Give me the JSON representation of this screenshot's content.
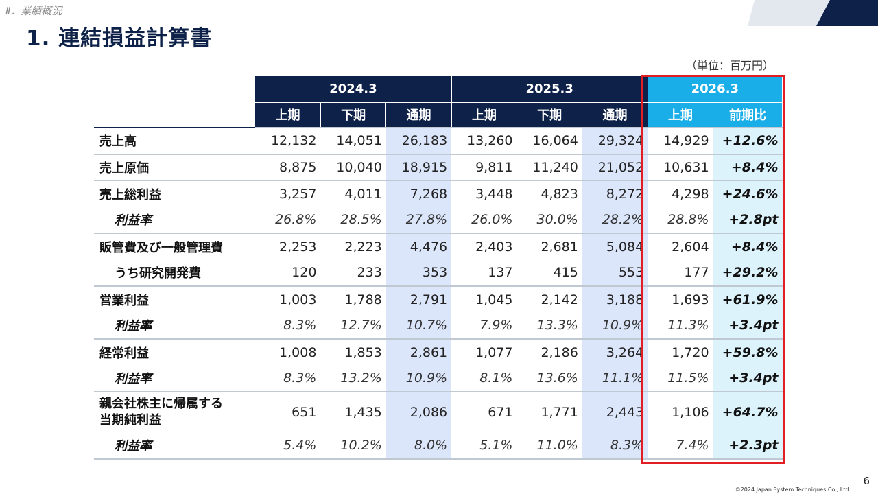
{
  "header": {
    "section": "Ⅱ．業績概況",
    "title": "1. 連結損益計算書",
    "unit": "（単位：百万円）"
  },
  "table": {
    "years": [
      "2024.3",
      "2025.3",
      "2026.3"
    ],
    "halves": [
      "上期",
      "下期",
      "通期",
      "上期",
      "下期",
      "通期",
      "上期",
      "前期比"
    ],
    "rows": [
      {
        "label": "売上高",
        "values": [
          "12,132",
          "14,051",
          "26,183",
          "13,260",
          "16,064",
          "29,324",
          "14,929",
          "+12.6%"
        ]
      },
      {
        "label": "売上原価",
        "values": [
          "8,875",
          "10,040",
          "18,915",
          "9,811",
          "11,240",
          "21,052",
          "10,631",
          "+8.4%"
        ]
      },
      {
        "label": "売上総利益",
        "values": [
          "3,257",
          "4,011",
          "7,268",
          "3,448",
          "4,823",
          "8,272",
          "4,298",
          "+24.6%"
        ]
      },
      {
        "label": "利益率",
        "values": [
          "26.8%",
          "28.5%",
          "27.8%",
          "26.0%",
          "30.0%",
          "28.2%",
          "28.8%",
          "+2.8pt"
        ]
      },
      {
        "label": "販管費及び一般管理費",
        "values": [
          "2,253",
          "2,223",
          "4,476",
          "2,403",
          "2,681",
          "5,084",
          "2,604",
          "+8.4%"
        ]
      },
      {
        "label": "うち研究開発費",
        "values": [
          "120",
          "233",
          "353",
          "137",
          "415",
          "553",
          "177",
          "+29.2%"
        ]
      },
      {
        "label": "営業利益",
        "values": [
          "1,003",
          "1,788",
          "2,791",
          "1,045",
          "2,142",
          "3,188",
          "1,693",
          "+61.9%"
        ]
      },
      {
        "label": "利益率",
        "values": [
          "8.3%",
          "12.7%",
          "10.7%",
          "7.9%",
          "13.3%",
          "10.9%",
          "11.3%",
          "+3.4pt"
        ]
      },
      {
        "label": "経常利益",
        "values": [
          "1,008",
          "1,853",
          "2,861",
          "1,077",
          "2,186",
          "3,264",
          "1,720",
          "+59.8%"
        ]
      },
      {
        "label": "利益率",
        "values": [
          "8.3%",
          "13.2%",
          "10.9%",
          "8.1%",
          "13.6%",
          "11.1%",
          "11.5%",
          "+3.4pt"
        ]
      },
      {
        "label_line1": "親会社株主に帰属する",
        "label_line2": "当期純利益",
        "values": [
          "651",
          "1,435",
          "2,086",
          "671",
          "1,771",
          "2,443",
          "1,106",
          "+64.7%"
        ]
      },
      {
        "label": "利益率",
        "values": [
          "5.4%",
          "10.2%",
          "8.0%",
          "5.1%",
          "11.0%",
          "8.3%",
          "7.4%",
          "+2.3pt"
        ]
      }
    ]
  },
  "footer": {
    "page_number": "6",
    "copyright": "©2024 Japan System Techniques Co., Ltd."
  },
  "colors": {
    "navy": "#0e2148",
    "current_header": "#1aaee8",
    "full_year_fill": "#dce6fb",
    "change_fill": "#ddf3fc",
    "highlight_border": "#e01e24"
  }
}
